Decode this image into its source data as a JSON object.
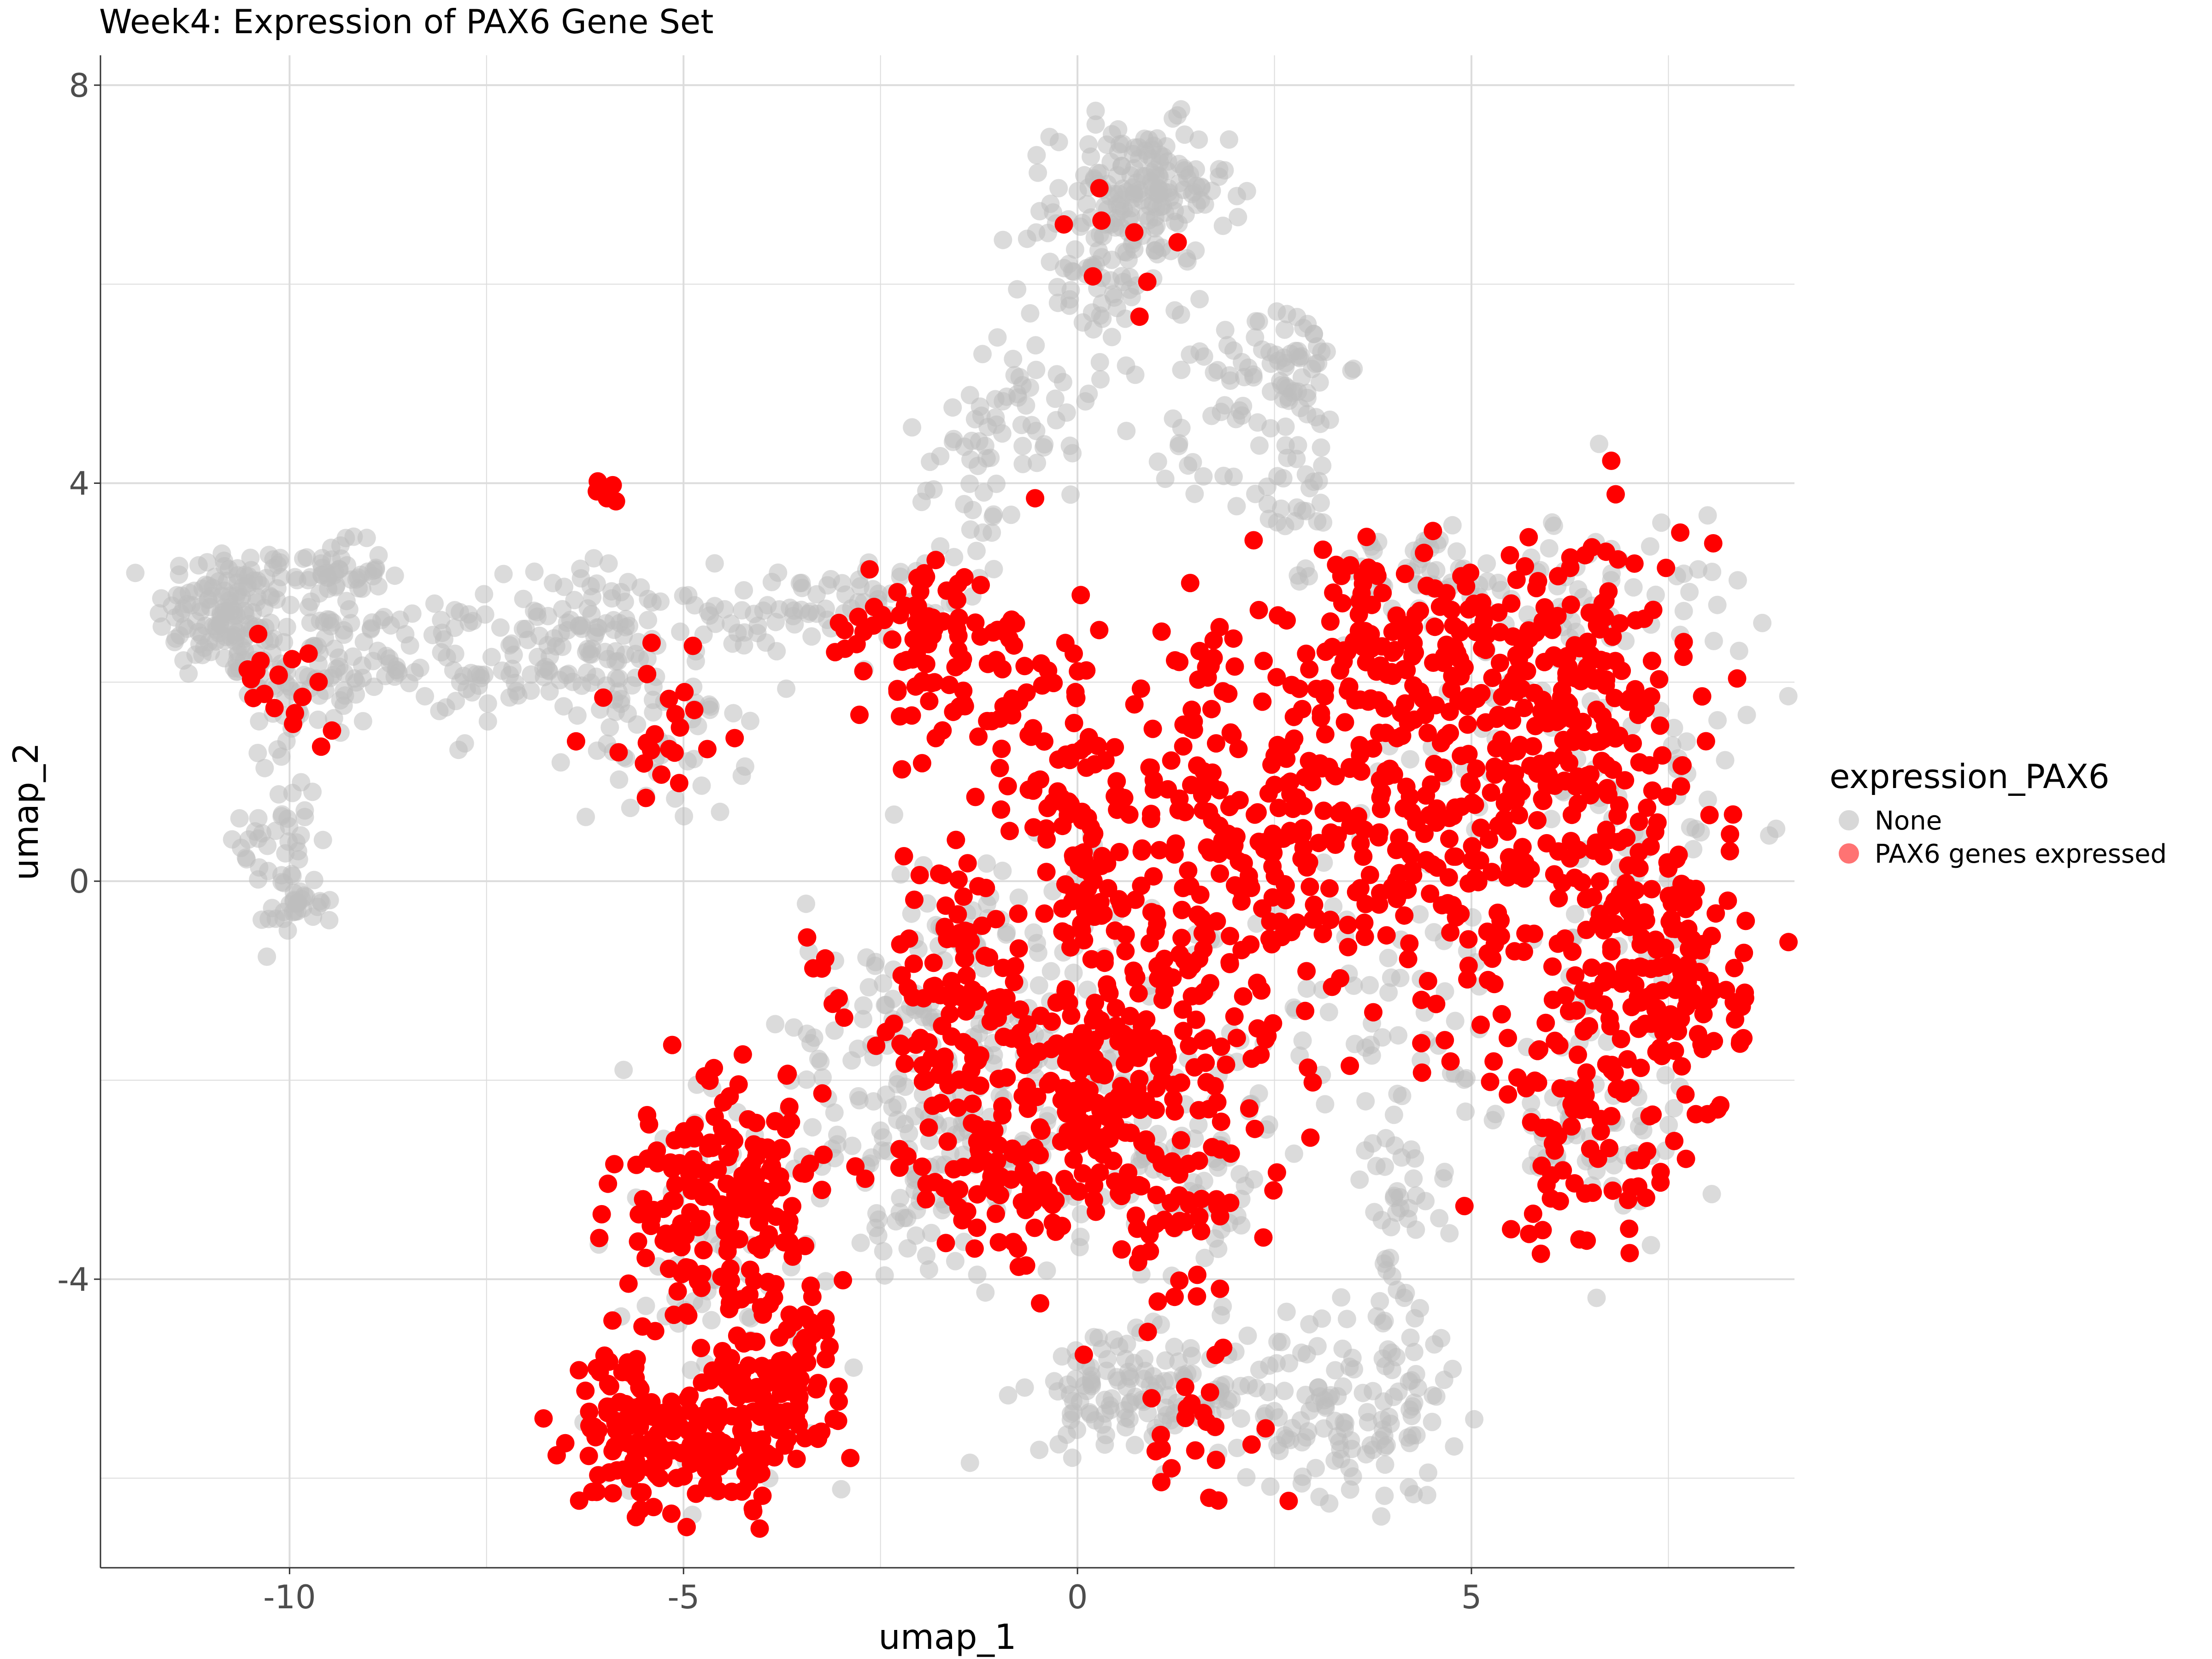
{
  "chart_data": {
    "type": "scatter",
    "title": "Week4: Expression of PAX6 Gene Set",
    "xlabel": "umap_1",
    "ylabel": "umap_2",
    "xlim": [
      -12.4,
      9.1
    ],
    "ylim": [
      -6.9,
      8.3
    ],
    "x_ticks": [
      -10,
      -5,
      0,
      5
    ],
    "x_tick_labels": [
      "-10",
      "-5",
      "0",
      "5"
    ],
    "y_ticks": [
      -4,
      0,
      4,
      8
    ],
    "y_tick_labels": [
      "-4",
      "0",
      "4",
      "8"
    ],
    "grid": true,
    "legend": {
      "title": "expression_PAX6",
      "placement": "right",
      "entries": [
        "None",
        "PAX6 genes expressed"
      ]
    },
    "colors": {
      "none": "#bebebe",
      "expressed": "#ff0000",
      "panel": "#ffffff",
      "grid": "#dcdcdc",
      "axis": "#333333"
    },
    "series": [
      {
        "name": "None",
        "clusters": [
          {
            "center": [
              -10.8,
              2.7
            ],
            "spread": [
              0.45,
              0.35
            ],
            "n": 140
          },
          {
            "center": [
              -9.7,
              2.1
            ],
            "spread": [
              0.45,
              0.35
            ],
            "n": 80
          },
          {
            "center": [
              -9.5,
              3.1
            ],
            "spread": [
              0.35,
              0.15
            ],
            "n": 50
          },
          {
            "center": [
              -10.1,
              0.4
            ],
            "spread": [
              0.25,
              0.5
            ],
            "n": 45
          },
          {
            "center": [
              -9.8,
              -0.2
            ],
            "spread": [
              0.2,
              0.15
            ],
            "n": 25
          },
          {
            "center": [
              -8.5,
              2.3
            ],
            "spread": [
              0.5,
              0.3
            ],
            "n": 40
          },
          {
            "center": [
              -7.2,
              2.2
            ],
            "spread": [
              0.7,
              0.35
            ],
            "n": 60
          },
          {
            "center": [
              -5.9,
              2.4
            ],
            "spread": [
              0.6,
              0.4
            ],
            "n": 90
          },
          {
            "center": [
              -5.2,
              1.4
            ],
            "spread": [
              0.5,
              0.4
            ],
            "n": 40
          },
          {
            "center": [
              -3.9,
              2.7
            ],
            "spread": [
              0.5,
              0.2
            ],
            "n": 40
          },
          {
            "center": [
              -2.5,
              2.9
            ],
            "spread": [
              0.4,
              0.2
            ],
            "n": 30
          },
          {
            "center": [
              0.8,
              6.9
            ],
            "spread": [
              0.55,
              0.35
            ],
            "n": 170
          },
          {
            "center": [
              0.2,
              6.1
            ],
            "spread": [
              0.45,
              0.35
            ],
            "n": 50
          },
          {
            "center": [
              -0.6,
              4.9
            ],
            "spread": [
              0.4,
              0.5
            ],
            "n": 45
          },
          {
            "center": [
              -1.3,
              3.9
            ],
            "spread": [
              0.35,
              0.5
            ],
            "n": 35
          },
          {
            "center": [
              2.7,
              5.2
            ],
            "spread": [
              0.35,
              0.3
            ],
            "n": 55
          },
          {
            "center": [
              2.7,
              4.1
            ],
            "spread": [
              0.3,
              0.6
            ],
            "n": 40
          },
          {
            "center": [
              1.6,
              4.7
            ],
            "spread": [
              0.6,
              0.5
            ],
            "n": 30
          },
          {
            "center": [
              4.4,
              3.1
            ],
            "spread": [
              0.6,
              0.2
            ],
            "n": 45
          },
          {
            "center": [
              -1.8,
              -1.5
            ],
            "spread": [
              0.9,
              1.0
            ],
            "n": 140
          },
          {
            "center": [
              -1.8,
              -2.8
            ],
            "spread": [
              0.8,
              0.5
            ],
            "n": 60
          },
          {
            "center": [
              0.0,
              -1.8
            ],
            "spread": [
              0.9,
              0.9
            ],
            "n": 100
          },
          {
            "center": [
              1.5,
              -2.9
            ],
            "spread": [
              0.5,
              0.6
            ],
            "n": 60
          },
          {
            "center": [
              1.3,
              -5.2
            ],
            "spread": [
              0.9,
              0.35
            ],
            "n": 110
          },
          {
            "center": [
              0.4,
              -5.0
            ],
            "spread": [
              0.4,
              0.3
            ],
            "n": 40
          },
          {
            "center": [
              3.5,
              -5.4
            ],
            "spread": [
              0.6,
              0.4
            ],
            "n": 90
          },
          {
            "center": [
              4.0,
              -4.2
            ],
            "spread": [
              0.3,
              0.8
            ],
            "n": 35
          },
          {
            "center": [
              4.2,
              -3.1
            ],
            "spread": [
              0.3,
              0.3
            ],
            "n": 25
          },
          {
            "center": [
              3.5,
              -1.3
            ],
            "spread": [
              1.0,
              0.6
            ],
            "n": 60
          },
          {
            "center": [
              6.5,
              -2.6
            ],
            "spread": [
              0.6,
              0.4
            ],
            "n": 50
          },
          {
            "center": [
              7.3,
              0.0
            ],
            "spread": [
              0.6,
              1.6
            ],
            "n": 70
          },
          {
            "center": [
              6.6,
              2.9
            ],
            "spread": [
              0.9,
              0.4
            ],
            "n": 60
          },
          {
            "center": [
              -4.6,
              -4.1
            ],
            "spread": [
              0.9,
              1.2
            ],
            "n": 70
          },
          {
            "center": [
              -2.4,
              -2.1
            ],
            "spread": [
              0.6,
              0.9
            ],
            "n": 30
          },
          {
            "center": [
              5.2,
              1.2
            ],
            "spread": [
              1.0,
              1.0
            ],
            "n": 50
          }
        ]
      },
      {
        "name": "PAX6 genes expressed",
        "clusters": [
          {
            "center": [
              -10.0,
              2.0
            ],
            "spread": [
              0.35,
              0.25
            ],
            "n": 18
          },
          {
            "center": [
              -5.9,
              3.9
            ],
            "spread": [
              0.12,
              0.08
            ],
            "n": 5
          },
          {
            "center": [
              -5.2,
              1.6
            ],
            "spread": [
              0.5,
              0.5
            ],
            "n": 22
          },
          {
            "center": [
              -2.1,
              2.5
            ],
            "spread": [
              0.55,
              0.4
            ],
            "n": 55
          },
          {
            "center": [
              -1.2,
              2.1
            ],
            "spread": [
              0.5,
              0.6
            ],
            "n": 50
          },
          {
            "center": [
              -0.2,
              1.2
            ],
            "spread": [
              0.35,
              0.6
            ],
            "n": 45
          },
          {
            "center": [
              0.2,
              0.0
            ],
            "spread": [
              0.5,
              0.6
            ],
            "n": 60
          },
          {
            "center": [
              0.5,
              -2.0
            ],
            "spread": [
              0.8,
              0.7
            ],
            "n": 210
          },
          {
            "center": [
              -1.5,
              -1.2
            ],
            "spread": [
              0.7,
              0.8
            ],
            "n": 110
          },
          {
            "center": [
              -1.0,
              -3.0
            ],
            "spread": [
              0.6,
              0.4
            ],
            "n": 70
          },
          {
            "center": [
              1.3,
              -3.2
            ],
            "spread": [
              0.5,
              0.5
            ],
            "n": 40
          },
          {
            "center": [
              1.8,
              0.5
            ],
            "spread": [
              0.7,
              0.9
            ],
            "n": 130
          },
          {
            "center": [
              3.2,
              0.5
            ],
            "spread": [
              0.7,
              0.9
            ],
            "n": 110
          },
          {
            "center": [
              3.8,
              2.5
            ],
            "spread": [
              0.8,
              0.4
            ],
            "n": 80
          },
          {
            "center": [
              5.2,
              0.3
            ],
            "spread": [
              0.9,
              1.0
            ],
            "n": 190
          },
          {
            "center": [
              5.4,
              2.1
            ],
            "spread": [
              0.8,
              0.6
            ],
            "n": 100
          },
          {
            "center": [
              6.8,
              1.8
            ],
            "spread": [
              0.6,
              1.0
            ],
            "n": 110
          },
          {
            "center": [
              7.5,
              -0.9
            ],
            "spread": [
              0.5,
              0.8
            ],
            "n": 150
          },
          {
            "center": [
              6.5,
              -2.4
            ],
            "spread": [
              0.6,
              0.7
            ],
            "n": 80
          },
          {
            "center": [
              -4.8,
              -3.3
            ],
            "spread": [
              0.55,
              0.6
            ],
            "n": 120
          },
          {
            "center": [
              -4.0,
              -3.2
            ],
            "spread": [
              0.4,
              0.6
            ],
            "n": 70
          },
          {
            "center": [
              -5.7,
              -5.5
            ],
            "spread": [
              0.35,
              0.4
            ],
            "n": 90
          },
          {
            "center": [
              -4.3,
              -5.6
            ],
            "spread": [
              0.5,
              0.4
            ],
            "n": 110
          },
          {
            "center": [
              -3.7,
              -4.8
            ],
            "spread": [
              0.35,
              0.4
            ],
            "n": 60
          },
          {
            "center": [
              1.6,
              -5.4
            ],
            "spread": [
              0.6,
              0.4
            ],
            "n": 25
          },
          {
            "center": [
              0.4,
              6.0
            ],
            "spread": [
              0.5,
              0.6
            ],
            "n": 8
          },
          {
            "center": [
              -3.3,
              -1.0
            ],
            "spread": [
              0.15,
              0.2
            ],
            "n": 4
          }
        ]
      }
    ]
  }
}
